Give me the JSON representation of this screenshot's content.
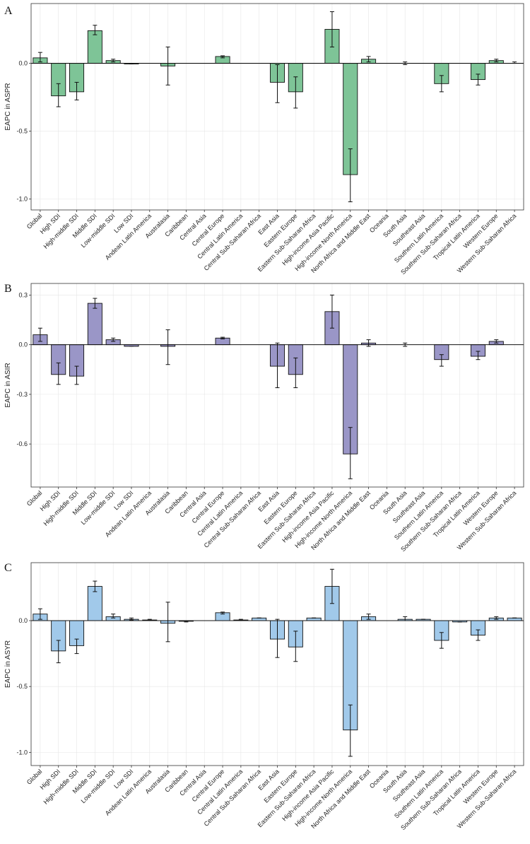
{
  "chart_data": [
    {
      "type": "bar",
      "panel_label": "A",
      "ylabel": "EAPC in ASPR",
      "color": "#7ec497",
      "ylim": [
        -1.08,
        0.44
      ],
      "yticks": [
        0.0,
        -0.5,
        -1.0
      ],
      "ytick_labels": [
        "0.0",
        "-0.5",
        "-1.0"
      ],
      "categories": [
        "Global",
        "High SDI",
        "High-middle SDI",
        "Middle SDI",
        "Low-middle SDI",
        "Low SDI",
        "Andean Latin America",
        "Australasia",
        "Caribbean",
        "Central Asia",
        "Central Europe",
        "Central Latin America",
        "Central Sub-Saharan Africa",
        "East Asia",
        "Eastern Europe",
        "Eastern Sub-Saharan Africa",
        "High-income Asia Pacific",
        "High-income North America",
        "North Africa and Middle East",
        "Oceania",
        "South Asia",
        "Southeast Asia",
        "Southern Latin America",
        "Southern Sub-Saharan Africa",
        "Tropical Latin America",
        "Western Europe",
        "Western Sub-Saharan Africa"
      ],
      "values": [
        0.04,
        -0.24,
        -0.21,
        0.24,
        0.02,
        -0.005,
        0.0,
        -0.02,
        0.0,
        0.0,
        0.05,
        0.0,
        0.0,
        -0.14,
        -0.21,
        0.0,
        0.25,
        -0.82,
        0.03,
        0.0,
        0.0,
        0.0,
        -0.15,
        0.0,
        -0.12,
        0.02,
        0.0
      ],
      "lower": [
        0.01,
        -0.32,
        -0.27,
        0.21,
        0.01,
        -0.005,
        0.0,
        -0.16,
        0.0,
        0.0,
        0.04,
        0.0,
        0.0,
        -0.29,
        -0.33,
        0.0,
        0.12,
        -1.02,
        0.01,
        0.0,
        -0.01,
        0.0,
        -0.21,
        0.0,
        -0.16,
        0.01,
        0.0
      ],
      "upper": [
        0.08,
        -0.15,
        -0.14,
        0.28,
        0.03,
        -0.005,
        0.0,
        0.12,
        0.0,
        0.0,
        0.055,
        0.0,
        0.0,
        -0.01,
        -0.1,
        0.0,
        0.38,
        -0.63,
        0.05,
        0.0,
        0.01,
        0.0,
        -0.09,
        0.0,
        -0.08,
        0.03,
        0.01
      ]
    },
    {
      "type": "bar",
      "panel_label": "B",
      "ylabel": "EAPC in ASIR",
      "color": "#9a96c7",
      "ylim": [
        -0.86,
        0.37
      ],
      "yticks": [
        0.3,
        0.0,
        -0.3,
        -0.6
      ],
      "ytick_labels": [
        "0.3",
        "0.0",
        "-0.3",
        "-0.6"
      ],
      "categories": [
        "Global",
        "High SDI",
        "High-middle SDI",
        "Middle SDI",
        "Low-middle SDI",
        "Low SDI",
        "Andean Latin America",
        "Australasia",
        "Caribbean",
        "Central Asia",
        "Central Europe",
        "Central Latin America",
        "Central Sub-Saharan Africa",
        "East Asia",
        "Eastern Europe",
        "Eastern Sub-Saharan Africa",
        "High-income Asia Pacific",
        "High-income North America",
        "North Africa and Middle East",
        "Oceania",
        "South Asia",
        "Southeast Asia",
        "Southern Latin America",
        "Southern Sub-Saharan Africa",
        "Tropical Latin America",
        "Western Europe",
        "Western Sub-Saharan Africa"
      ],
      "values": [
        0.06,
        -0.18,
        -0.19,
        0.25,
        0.03,
        -0.01,
        0.0,
        -0.01,
        0.0,
        0.0,
        0.04,
        0.0,
        0.0,
        -0.13,
        -0.18,
        0.0,
        0.2,
        -0.66,
        0.01,
        0.0,
        0.0,
        0.0,
        -0.09,
        0.0,
        -0.07,
        0.02,
        0.0
      ],
      "lower": [
        0.02,
        -0.24,
        -0.24,
        0.22,
        0.02,
        -0.01,
        0.0,
        -0.12,
        0.0,
        0.0,
        0.035,
        0.0,
        0.0,
        -0.26,
        -0.26,
        0.0,
        0.1,
        -0.81,
        -0.01,
        0.0,
        -0.01,
        0.0,
        -0.13,
        0.0,
        -0.09,
        0.01,
        0.0
      ],
      "upper": [
        0.1,
        -0.11,
        -0.13,
        0.28,
        0.04,
        -0.01,
        0.0,
        0.09,
        0.0,
        0.0,
        0.045,
        0.0,
        0.0,
        0.01,
        -0.08,
        0.0,
        0.3,
        -0.5,
        0.03,
        0.0,
        0.01,
        0.0,
        -0.06,
        0.0,
        -0.04,
        0.03,
        0.0
      ]
    },
    {
      "type": "bar",
      "panel_label": "C",
      "ylabel": "EAPC in ASYR",
      "color": "#a1c9ea",
      "ylim": [
        -1.1,
        0.44
      ],
      "yticks": [
        0.0,
        -0.5,
        -1.0
      ],
      "ytick_labels": [
        "0.0",
        "-0.5",
        "-1.0"
      ],
      "categories": [
        "Global",
        "High SDI",
        "High-middle SDI",
        "Middle SDI",
        "Low-middle SDI",
        "Low SDI",
        "Andean Latin America",
        "Australasia",
        "Caribbean",
        "Central Asia",
        "Central Europe",
        "Central Latin America",
        "Central Sub-Saharan Africa",
        "East Asia",
        "Eastern Europe",
        "Eastern Sub-Saharan Africa",
        "High-income Asia Pacific",
        "High-income North America",
        "North Africa and Middle East",
        "Oceania",
        "South Asia",
        "Southeast Asia",
        "Southern Latin America",
        "Southern Sub-Saharan Africa",
        "Tropical Latin America",
        "Western Europe",
        "Western Sub-Saharan Africa"
      ],
      "values": [
        0.05,
        -0.23,
        -0.19,
        0.26,
        0.03,
        0.01,
        0.005,
        -0.02,
        -0.005,
        0.0,
        0.06,
        0.005,
        0.02,
        -0.14,
        -0.2,
        0.02,
        0.26,
        -0.83,
        0.03,
        0.0,
        0.01,
        0.01,
        -0.15,
        -0.01,
        -0.11,
        0.02,
        0.02
      ],
      "lower": [
        0.01,
        -0.32,
        -0.25,
        0.22,
        0.02,
        0.005,
        0.0,
        -0.16,
        -0.01,
        0.0,
        0.05,
        0.0,
        0.02,
        -0.28,
        -0.31,
        0.02,
        0.13,
        -1.03,
        0.01,
        0.0,
        0.0,
        0.01,
        -0.21,
        -0.01,
        -0.15,
        0.01,
        0.02
      ],
      "upper": [
        0.09,
        -0.15,
        -0.14,
        0.3,
        0.05,
        0.02,
        0.01,
        0.14,
        0.0,
        0.0,
        0.065,
        0.01,
        0.02,
        0.01,
        -0.08,
        0.02,
        0.39,
        -0.64,
        0.05,
        0.0,
        0.03,
        0.01,
        -0.09,
        -0.01,
        -0.07,
        0.03,
        0.02
      ]
    }
  ]
}
